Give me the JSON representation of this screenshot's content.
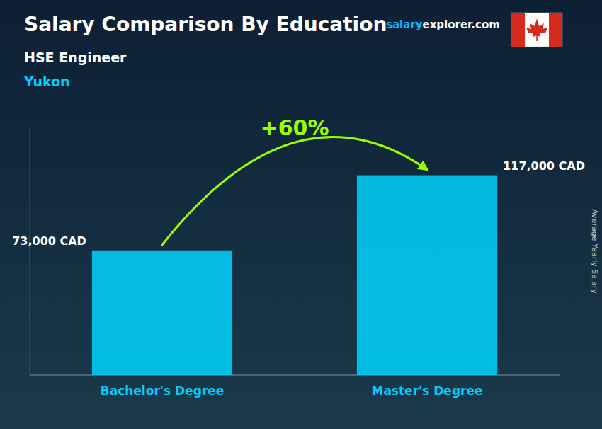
{
  "chart_data": {
    "type": "bar",
    "title": "Salary Comparison By Education",
    "subtitle": [
      "HSE Engineer",
      "Yukon"
    ],
    "annotations": [
      "+60%",
      "salary",
      "explorer.com"
    ],
    "y_label": "Average Yearly Salary",
    "categories": [
      "Bachelor's Degree",
      "Master's Degree"
    ],
    "values": [
      73000,
      117000
    ],
    "value_labels": [
      "73,000 CAD",
      "117,000 CAD"
    ],
    "data_labels": true,
    "color": "#00D4FF",
    "ylim": [
      0,
      145000
    ],
    "tick_labels": "x",
    "grid": false
  }
}
